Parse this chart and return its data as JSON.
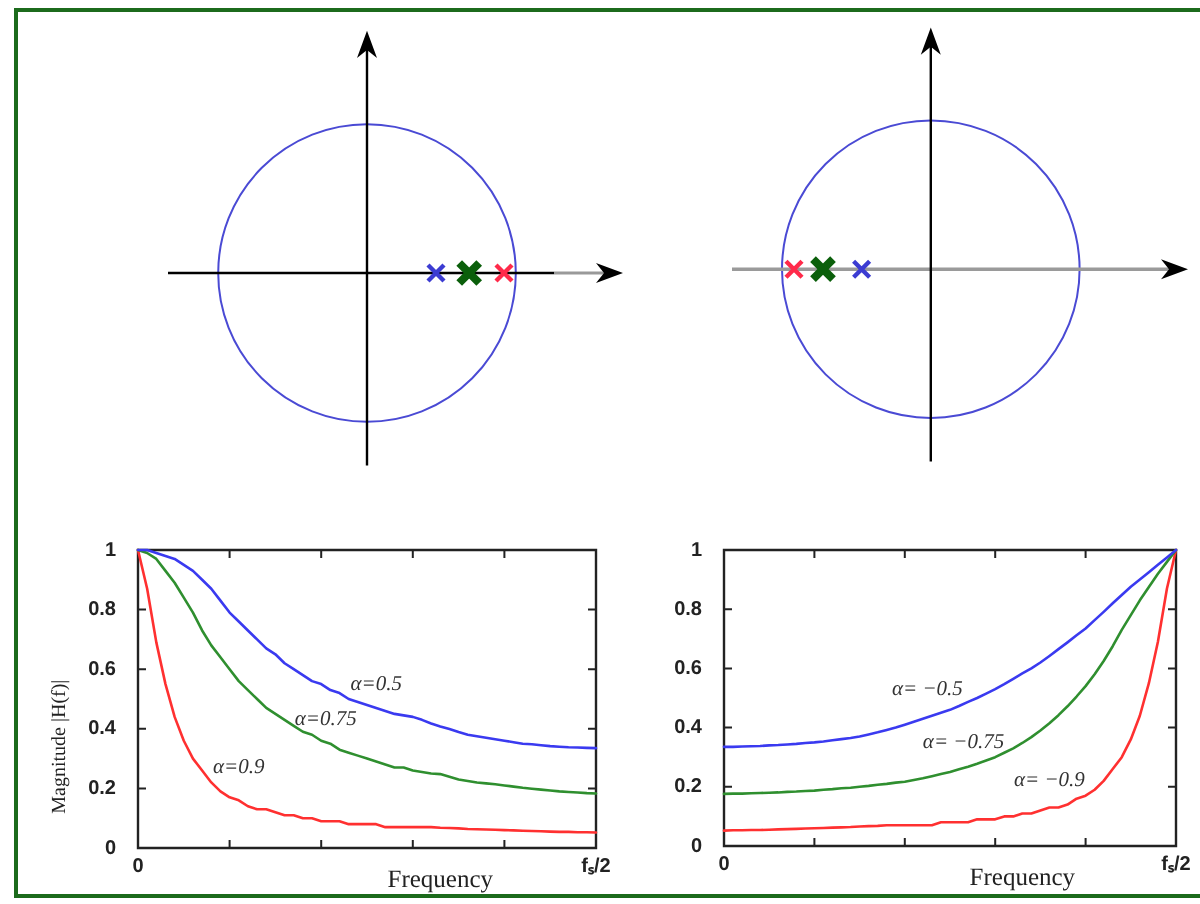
{
  "chart_data": [
    {
      "type": "line",
      "ylabel": "Magnitude |H(f)|",
      "xlabel": "Frequency",
      "ylim": [
        0,
        1
      ],
      "yticks": [
        0,
        0.2,
        0.4,
        0.6,
        0.8,
        1
      ],
      "grid": false,
      "legend": false,
      "marker": "none",
      "categories": [
        "0",
        null,
        null,
        null,
        null,
        null,
        null,
        null,
        null,
        null,
        null,
        null,
        null,
        null,
        null,
        null,
        null,
        null,
        null,
        null,
        null,
        null,
        null,
        null,
        null,
        null,
        null,
        null,
        null,
        null,
        null,
        null,
        null,
        null,
        null,
        null,
        null,
        null,
        null,
        null,
        null,
        null,
        null,
        null,
        null,
        null,
        null,
        null,
        null,
        null,
        "fₛ/2"
      ],
      "series": [
        {
          "color": "#3a3af0",
          "values": [
            1,
            1,
            0.99,
            0.98,
            0.97,
            0.95,
            0.93,
            0.9,
            0.87,
            0.83,
            0.79,
            0.76,
            0.73,
            0.7,
            0.67,
            0.65,
            0.62,
            0.6,
            0.58,
            0.56,
            0.55,
            0.53,
            0.52,
            0.5,
            0.49,
            0.48,
            0.47,
            0.46,
            0.45,
            0.445,
            0.44,
            0.43,
            0.418,
            0.408,
            0.399,
            0.389,
            0.38,
            0.375,
            0.37,
            0.365,
            0.36,
            0.355,
            0.35,
            0.348,
            0.345,
            0.342,
            0.34,
            0.338,
            0.337,
            0.336,
            0.335
          ]
        },
        {
          "color": "#2f8f2f",
          "values": [
            1,
            0.99,
            0.97,
            0.93,
            0.89,
            0.84,
            0.79,
            0.73,
            0.68,
            0.64,
            0.6,
            0.56,
            0.53,
            0.5,
            0.47,
            0.45,
            0.43,
            0.41,
            0.39,
            0.38,
            0.36,
            0.35,
            0.33,
            0.32,
            0.31,
            0.3,
            0.29,
            0.28,
            0.27,
            0.27,
            0.26,
            0.255,
            0.25,
            0.248,
            0.239,
            0.23,
            0.225,
            0.22,
            0.217,
            0.214,
            0.21,
            0.206,
            0.202,
            0.199,
            0.196,
            0.193,
            0.19,
            0.188,
            0.186,
            0.184,
            0.183
          ]
        },
        {
          "color": "#ff3030",
          "values": [
            1,
            0.87,
            0.69,
            0.55,
            0.44,
            0.36,
            0.3,
            0.26,
            0.22,
            0.19,
            0.17,
            0.16,
            0.14,
            0.13,
            0.13,
            0.12,
            0.11,
            0.11,
            0.1,
            0.1,
            0.09,
            0.09,
            0.09,
            0.08,
            0.08,
            0.08,
            0.08,
            0.07,
            0.07,
            0.07,
            0.07,
            0.07,
            0.07,
            0.068,
            0.067,
            0.066,
            0.064,
            0.063,
            0.062,
            0.061,
            0.06,
            0.059,
            0.058,
            0.057,
            0.056,
            0.055,
            0.054,
            0.054,
            0.053,
            0.053,
            0.052
          ]
        }
      ],
      "annotations": [
        "α=0.5",
        "α=0.75",
        "α=0.9"
      ]
    },
    {
      "type": "line",
      "xlabel": "Frequency",
      "ylim": [
        0,
        1
      ],
      "yticks": [
        0,
        0.2,
        0.4,
        0.6,
        0.8,
        1
      ],
      "grid": false,
      "legend": false,
      "marker": "none",
      "categories": [
        "0",
        null,
        null,
        null,
        null,
        null,
        null,
        null,
        null,
        null,
        null,
        null,
        null,
        null,
        null,
        null,
        null,
        null,
        null,
        null,
        null,
        null,
        null,
        null,
        null,
        null,
        null,
        null,
        null,
        null,
        null,
        null,
        null,
        null,
        null,
        null,
        null,
        null,
        null,
        null,
        null,
        null,
        null,
        null,
        null,
        null,
        null,
        null,
        null,
        null,
        "fₛ/2"
      ],
      "series": [
        {
          "color": "#3a3af0",
          "values": [
            0.335,
            0.335,
            0.336,
            0.337,
            0.338,
            0.34,
            0.341,
            0.343,
            0.345,
            0.348,
            0.35,
            0.353,
            0.357,
            0.361,
            0.365,
            0.37,
            0.377,
            0.384,
            0.392,
            0.4,
            0.41,
            0.42,
            0.43,
            0.44,
            0.45,
            0.46,
            0.473,
            0.487,
            0.5,
            0.515,
            0.53,
            0.547,
            0.565,
            0.583,
            0.6,
            0.62,
            0.642,
            0.665,
            0.688,
            0.712,
            0.735,
            0.763,
            0.791,
            0.82,
            0.848,
            0.876,
            0.9,
            0.925,
            0.95,
            0.975,
            1
          ]
        },
        {
          "color": "#2f8f2f",
          "values": [
            0.176,
            0.177,
            0.177,
            0.178,
            0.179,
            0.18,
            0.181,
            0.183,
            0.184,
            0.186,
            0.187,
            0.19,
            0.192,
            0.195,
            0.197,
            0.2,
            0.203,
            0.207,
            0.21,
            0.214,
            0.217,
            0.223,
            0.229,
            0.236,
            0.243,
            0.25,
            0.259,
            0.268,
            0.278,
            0.289,
            0.3,
            0.315,
            0.33,
            0.348,
            0.368,
            0.39,
            0.415,
            0.442,
            0.472,
            0.505,
            0.54,
            0.58,
            0.625,
            0.675,
            0.73,
            0.78,
            0.83,
            0.875,
            0.92,
            0.96,
            1
          ]
        },
        {
          "color": "#ff3030",
          "values": [
            0.052,
            0.053,
            0.053,
            0.054,
            0.054,
            0.055,
            0.056,
            0.057,
            0.058,
            0.059,
            0.06,
            0.061,
            0.062,
            0.063,
            0.064,
            0.066,
            0.067,
            0.068,
            0.07,
            0.07,
            0.07,
            0.07,
            0.07,
            0.07,
            0.08,
            0.08,
            0.08,
            0.08,
            0.09,
            0.09,
            0.09,
            0.1,
            0.1,
            0.11,
            0.11,
            0.12,
            0.13,
            0.13,
            0.14,
            0.16,
            0.17,
            0.19,
            0.22,
            0.26,
            0.3,
            0.36,
            0.44,
            0.55,
            0.69,
            0.87,
            1
          ]
        }
      ],
      "annotations": [
        "α= −0.5",
        "α= −0.75",
        "α= −0.9"
      ]
    }
  ]
}
